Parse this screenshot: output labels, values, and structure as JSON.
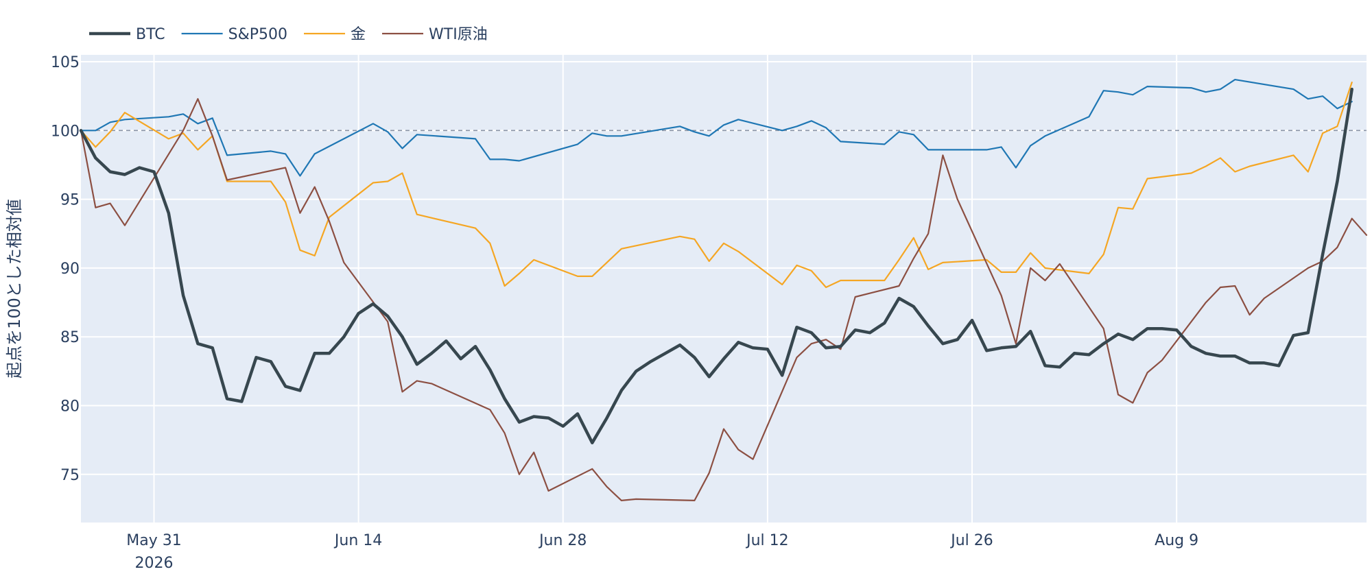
{
  "chart_data": {
    "type": "line",
    "title": "",
    "xlabel": "",
    "ylabel": "起点を100とした相対値",
    "ylim": [
      71.5,
      105.5
    ],
    "xlim": [
      "2026-05-26",
      "2026-08-22"
    ],
    "grid": true,
    "legend_position": "top-left",
    "reference_line": {
      "y": 100,
      "style": "dashed"
    },
    "y_ticks": [
      75,
      80,
      85,
      90,
      95,
      100,
      105
    ],
    "x_ticks": [
      {
        "date": "2026-05-31",
        "label": "May 31",
        "sublabel": "2026"
      },
      {
        "date": "2026-06-14",
        "label": "Jun 14",
        "sublabel": ""
      },
      {
        "date": "2026-06-28",
        "label": "Jun 28",
        "sublabel": ""
      },
      {
        "date": "2026-07-12",
        "label": "Jul 12",
        "sublabel": ""
      },
      {
        "date": "2026-07-26",
        "label": "Jul 26",
        "sublabel": ""
      },
      {
        "date": "2026-08-09",
        "label": "Aug 9",
        "sublabel": ""
      }
    ],
    "series": [
      {
        "name": "BTC",
        "color": "#37474f",
        "width": 4.5,
        "points": [
          [
            "2026-05-26",
            100.0
          ],
          [
            "2026-05-27",
            98.0
          ],
          [
            "2026-05-28",
            97.0
          ],
          [
            "2026-05-29",
            96.8
          ],
          [
            "2026-05-30",
            97.3
          ],
          [
            "2026-05-31",
            97.0
          ],
          [
            "2026-06-01",
            94.0
          ],
          [
            "2026-06-02",
            88.0
          ],
          [
            "2026-06-03",
            84.5
          ],
          [
            "2026-06-04",
            84.2
          ],
          [
            "2026-06-05",
            80.5
          ],
          [
            "2026-06-06",
            80.3
          ],
          [
            "2026-06-07",
            83.5
          ],
          [
            "2026-06-08",
            83.2
          ],
          [
            "2026-06-09",
            81.4
          ],
          [
            "2026-06-10",
            81.1
          ],
          [
            "2026-06-11",
            83.8
          ],
          [
            "2026-06-12",
            83.8
          ],
          [
            "2026-06-13",
            85.0
          ],
          [
            "2026-06-14",
            86.7
          ],
          [
            "2026-06-15",
            87.4
          ],
          [
            "2026-06-16",
            86.5
          ],
          [
            "2026-06-17",
            85.0
          ],
          [
            "2026-06-18",
            83.0
          ],
          [
            "2026-06-19",
            83.8
          ],
          [
            "2026-06-20",
            84.7
          ],
          [
            "2026-06-21",
            83.4
          ],
          [
            "2026-06-22",
            84.3
          ],
          [
            "2026-06-23",
            82.6
          ],
          [
            "2026-06-24",
            80.5
          ],
          [
            "2026-06-25",
            78.8
          ],
          [
            "2026-06-26",
            79.2
          ],
          [
            "2026-06-27",
            79.1
          ],
          [
            "2026-06-28",
            78.5
          ],
          [
            "2026-06-29",
            79.4
          ],
          [
            "2026-06-30",
            77.3
          ],
          [
            "2026-07-01",
            79.1
          ],
          [
            "2026-07-02",
            81.1
          ],
          [
            "2026-07-03",
            82.5
          ],
          [
            "2026-07-04",
            83.2
          ],
          [
            "2026-07-05",
            83.8
          ],
          [
            "2026-07-06",
            84.4
          ],
          [
            "2026-07-07",
            83.5
          ],
          [
            "2026-07-08",
            82.1
          ],
          [
            "2026-07-09",
            83.4
          ],
          [
            "2026-07-10",
            84.6
          ],
          [
            "2026-07-11",
            84.2
          ],
          [
            "2026-07-12",
            84.1
          ],
          [
            "2026-07-13",
            82.2
          ],
          [
            "2026-07-14",
            85.7
          ],
          [
            "2026-07-15",
            85.3
          ],
          [
            "2026-07-16",
            84.2
          ],
          [
            "2026-07-17",
            84.3
          ],
          [
            "2026-07-18",
            85.5
          ],
          [
            "2026-07-19",
            85.3
          ],
          [
            "2026-07-20",
            86.0
          ],
          [
            "2026-07-21",
            87.8
          ],
          [
            "2026-07-22",
            87.2
          ],
          [
            "2026-07-23",
            85.8
          ],
          [
            "2026-07-24",
            84.5
          ],
          [
            "2026-07-25",
            84.8
          ],
          [
            "2026-07-26",
            86.2
          ],
          [
            "2026-07-27",
            84.0
          ],
          [
            "2026-07-28",
            84.2
          ],
          [
            "2026-07-29",
            84.3
          ],
          [
            "2026-07-30",
            85.4
          ],
          [
            "2026-07-31",
            82.9
          ],
          [
            "2026-08-01",
            82.8
          ],
          [
            "2026-08-02",
            83.8
          ],
          [
            "2026-08-03",
            83.7
          ],
          [
            "2026-08-04",
            84.5
          ],
          [
            "2026-08-05",
            85.2
          ],
          [
            "2026-08-06",
            84.8
          ],
          [
            "2026-08-07",
            85.6
          ],
          [
            "2026-08-08",
            85.6
          ],
          [
            "2026-08-09",
            85.5
          ],
          [
            "2026-08-10",
            84.3
          ],
          [
            "2026-08-11",
            83.8
          ],
          [
            "2026-08-12",
            83.6
          ],
          [
            "2026-08-13",
            83.6
          ],
          [
            "2026-08-14",
            83.1
          ],
          [
            "2026-08-15",
            83.1
          ],
          [
            "2026-08-16",
            82.9
          ],
          [
            "2026-08-17",
            85.1
          ],
          [
            "2026-08-18",
            85.3
          ],
          [
            "2026-08-19",
            91.0
          ],
          [
            "2026-08-20",
            96.3
          ],
          [
            "2026-08-21",
            103.0
          ]
        ]
      },
      {
        "name": "S&P500",
        "color": "#1f77b4",
        "width": 2.2,
        "points": [
          [
            "2026-05-26",
            100.0
          ],
          [
            "2026-05-27",
            100.0
          ],
          [
            "2026-05-28",
            100.6
          ],
          [
            "2026-05-29",
            100.8
          ],
          [
            "2026-06-01",
            101.0
          ],
          [
            "2026-06-02",
            101.2
          ],
          [
            "2026-06-03",
            100.5
          ],
          [
            "2026-06-04",
            100.9
          ],
          [
            "2026-06-05",
            98.2
          ],
          [
            "2026-06-08",
            98.5
          ],
          [
            "2026-06-09",
            98.3
          ],
          [
            "2026-06-10",
            96.7
          ],
          [
            "2026-06-11",
            98.3
          ],
          [
            "2026-06-15",
            100.5
          ],
          [
            "2026-06-16",
            99.9
          ],
          [
            "2026-06-17",
            98.7
          ],
          [
            "2026-06-18",
            99.7
          ],
          [
            "2026-06-22",
            99.4
          ],
          [
            "2026-06-23",
            97.9
          ],
          [
            "2026-06-24",
            97.9
          ],
          [
            "2026-06-25",
            97.8
          ],
          [
            "2026-06-29",
            99.0
          ],
          [
            "2026-06-30",
            99.8
          ],
          [
            "2026-07-01",
            99.6
          ],
          [
            "2026-07-02",
            99.6
          ],
          [
            "2026-07-06",
            100.3
          ],
          [
            "2026-07-07",
            99.9
          ],
          [
            "2026-07-08",
            99.6
          ],
          [
            "2026-07-09",
            100.4
          ],
          [
            "2026-07-10",
            100.8
          ],
          [
            "2026-07-13",
            100.0
          ],
          [
            "2026-07-14",
            100.3
          ],
          [
            "2026-07-15",
            100.7
          ],
          [
            "2026-07-16",
            100.2
          ],
          [
            "2026-07-17",
            99.2
          ],
          [
            "2026-07-20",
            99.0
          ],
          [
            "2026-07-21",
            99.9
          ],
          [
            "2026-07-22",
            99.7
          ],
          [
            "2026-07-23",
            98.6
          ],
          [
            "2026-07-24",
            98.6
          ],
          [
            "2026-07-27",
            98.6
          ],
          [
            "2026-07-28",
            98.8
          ],
          [
            "2026-07-29",
            97.3
          ],
          [
            "2026-07-30",
            98.9
          ],
          [
            "2026-07-31",
            99.6
          ],
          [
            "2026-08-03",
            101.0
          ],
          [
            "2026-08-04",
            102.9
          ],
          [
            "2026-08-05",
            102.8
          ],
          [
            "2026-08-06",
            102.6
          ],
          [
            "2026-08-07",
            103.2
          ],
          [
            "2026-08-10",
            103.1
          ],
          [
            "2026-08-11",
            102.8
          ],
          [
            "2026-08-12",
            103.0
          ],
          [
            "2026-08-13",
            103.7
          ],
          [
            "2026-08-17",
            103.0
          ],
          [
            "2026-08-18",
            102.3
          ],
          [
            "2026-08-19",
            102.5
          ],
          [
            "2026-08-20",
            101.6
          ],
          [
            "2026-08-21",
            102.1
          ]
        ]
      },
      {
        "name": "金",
        "color": "#f5a623",
        "width": 2.2,
        "points": [
          [
            "2026-05-26",
            100.0
          ],
          [
            "2026-05-27",
            98.8
          ],
          [
            "2026-05-28",
            99.9
          ],
          [
            "2026-05-29",
            101.3
          ],
          [
            "2026-06-01",
            99.4
          ],
          [
            "2026-06-02",
            99.8
          ],
          [
            "2026-06-03",
            98.6
          ],
          [
            "2026-06-04",
            99.6
          ],
          [
            "2026-06-05",
            96.3
          ],
          [
            "2026-06-08",
            96.3
          ],
          [
            "2026-06-09",
            94.8
          ],
          [
            "2026-06-10",
            91.3
          ],
          [
            "2026-06-11",
            90.9
          ],
          [
            "2026-06-12",
            93.7
          ],
          [
            "2026-06-15",
            96.2
          ],
          [
            "2026-06-16",
            96.3
          ],
          [
            "2026-06-17",
            96.9
          ],
          [
            "2026-06-18",
            93.9
          ],
          [
            "2026-06-22",
            92.9
          ],
          [
            "2026-06-23",
            91.8
          ],
          [
            "2026-06-24",
            88.7
          ],
          [
            "2026-06-25",
            89.6
          ],
          [
            "2026-06-26",
            90.6
          ],
          [
            "2026-06-29",
            89.4
          ],
          [
            "2026-06-30",
            89.4
          ],
          [
            "2026-07-01",
            90.4
          ],
          [
            "2026-07-02",
            91.4
          ],
          [
            "2026-07-06",
            92.3
          ],
          [
            "2026-07-07",
            92.1
          ],
          [
            "2026-07-08",
            90.5
          ],
          [
            "2026-07-09",
            91.8
          ],
          [
            "2026-07-10",
            91.2
          ],
          [
            "2026-07-13",
            88.8
          ],
          [
            "2026-07-14",
            90.2
          ],
          [
            "2026-07-15",
            89.8
          ],
          [
            "2026-07-16",
            88.6
          ],
          [
            "2026-07-17",
            89.1
          ],
          [
            "2026-07-20",
            89.1
          ],
          [
            "2026-07-21",
            90.6
          ],
          [
            "2026-07-22",
            92.2
          ],
          [
            "2026-07-23",
            89.9
          ],
          [
            "2026-07-24",
            90.4
          ],
          [
            "2026-07-27",
            90.6
          ],
          [
            "2026-07-28",
            89.7
          ],
          [
            "2026-07-29",
            89.7
          ],
          [
            "2026-07-30",
            91.1
          ],
          [
            "2026-07-31",
            90.0
          ],
          [
            "2026-08-03",
            89.6
          ],
          [
            "2026-08-04",
            91.0
          ],
          [
            "2026-08-05",
            94.4
          ],
          [
            "2026-08-06",
            94.3
          ],
          [
            "2026-08-07",
            96.5
          ],
          [
            "2026-08-10",
            96.9
          ],
          [
            "2026-08-11",
            97.4
          ],
          [
            "2026-08-12",
            98.0
          ],
          [
            "2026-08-13",
            97.0
          ],
          [
            "2026-08-14",
            97.4
          ],
          [
            "2026-08-17",
            98.2
          ],
          [
            "2026-08-18",
            97.0
          ],
          [
            "2026-08-19",
            99.8
          ],
          [
            "2026-08-20",
            100.3
          ],
          [
            "2026-08-21",
            103.5
          ]
        ]
      },
      {
        "name": "WTI原油",
        "color": "#8c4f42",
        "width": 2.2,
        "points": [
          [
            "2026-05-26",
            100.0
          ],
          [
            "2026-05-27",
            94.4
          ],
          [
            "2026-05-28",
            94.7
          ],
          [
            "2026-05-29",
            93.1
          ],
          [
            "2026-06-02",
            100.0
          ],
          [
            "2026-06-03",
            102.3
          ],
          [
            "2026-06-04",
            99.6
          ],
          [
            "2026-06-05",
            96.4
          ],
          [
            "2026-06-09",
            97.3
          ],
          [
            "2026-06-10",
            94.0
          ],
          [
            "2026-06-11",
            95.9
          ],
          [
            "2026-06-12",
            93.4
          ],
          [
            "2026-06-13",
            90.4
          ],
          [
            "2026-06-16",
            86.1
          ],
          [
            "2026-06-17",
            81.0
          ],
          [
            "2026-06-18",
            81.8
          ],
          [
            "2026-06-19",
            81.6
          ],
          [
            "2026-06-23",
            79.7
          ],
          [
            "2026-06-24",
            78.0
          ],
          [
            "2026-06-25",
            75.0
          ],
          [
            "2026-06-26",
            76.6
          ],
          [
            "2026-06-27",
            73.8
          ],
          [
            "2026-06-30",
            75.4
          ],
          [
            "2026-07-01",
            74.1
          ],
          [
            "2026-07-02",
            73.1
          ],
          [
            "2026-07-03",
            73.2
          ],
          [
            "2026-07-07",
            73.1
          ],
          [
            "2026-07-08",
            75.1
          ],
          [
            "2026-07-09",
            78.3
          ],
          [
            "2026-07-10",
            76.8
          ],
          [
            "2026-07-11",
            76.1
          ],
          [
            "2026-07-14",
            83.5
          ],
          [
            "2026-07-15",
            84.5
          ],
          [
            "2026-07-16",
            84.8
          ],
          [
            "2026-07-17",
            84.1
          ],
          [
            "2026-07-18",
            87.9
          ],
          [
            "2026-07-21",
            88.7
          ],
          [
            "2026-07-22",
            90.7
          ],
          [
            "2026-07-23",
            92.5
          ],
          [
            "2026-07-24",
            98.2
          ],
          [
            "2026-07-25",
            95.0
          ],
          [
            "2026-07-28",
            88.0
          ],
          [
            "2026-07-29",
            84.5
          ],
          [
            "2026-07-30",
            90.0
          ],
          [
            "2026-07-31",
            89.1
          ],
          [
            "2026-08-01",
            90.3
          ],
          [
            "2026-08-04",
            85.6
          ],
          [
            "2026-08-05",
            80.8
          ],
          [
            "2026-08-06",
            80.2
          ],
          [
            "2026-08-07",
            82.4
          ],
          [
            "2026-08-08",
            83.3
          ],
          [
            "2026-08-11",
            87.5
          ],
          [
            "2026-08-12",
            88.6
          ],
          [
            "2026-08-13",
            88.7
          ],
          [
            "2026-08-14",
            86.6
          ],
          [
            "2026-08-15",
            87.8
          ],
          [
            "2026-08-18",
            90.0
          ],
          [
            "2026-08-19",
            90.5
          ],
          [
            "2026-08-20",
            91.5
          ],
          [
            "2026-08-21",
            93.6
          ],
          [
            "2026-08-22",
            92.4
          ]
        ]
      }
    ]
  }
}
